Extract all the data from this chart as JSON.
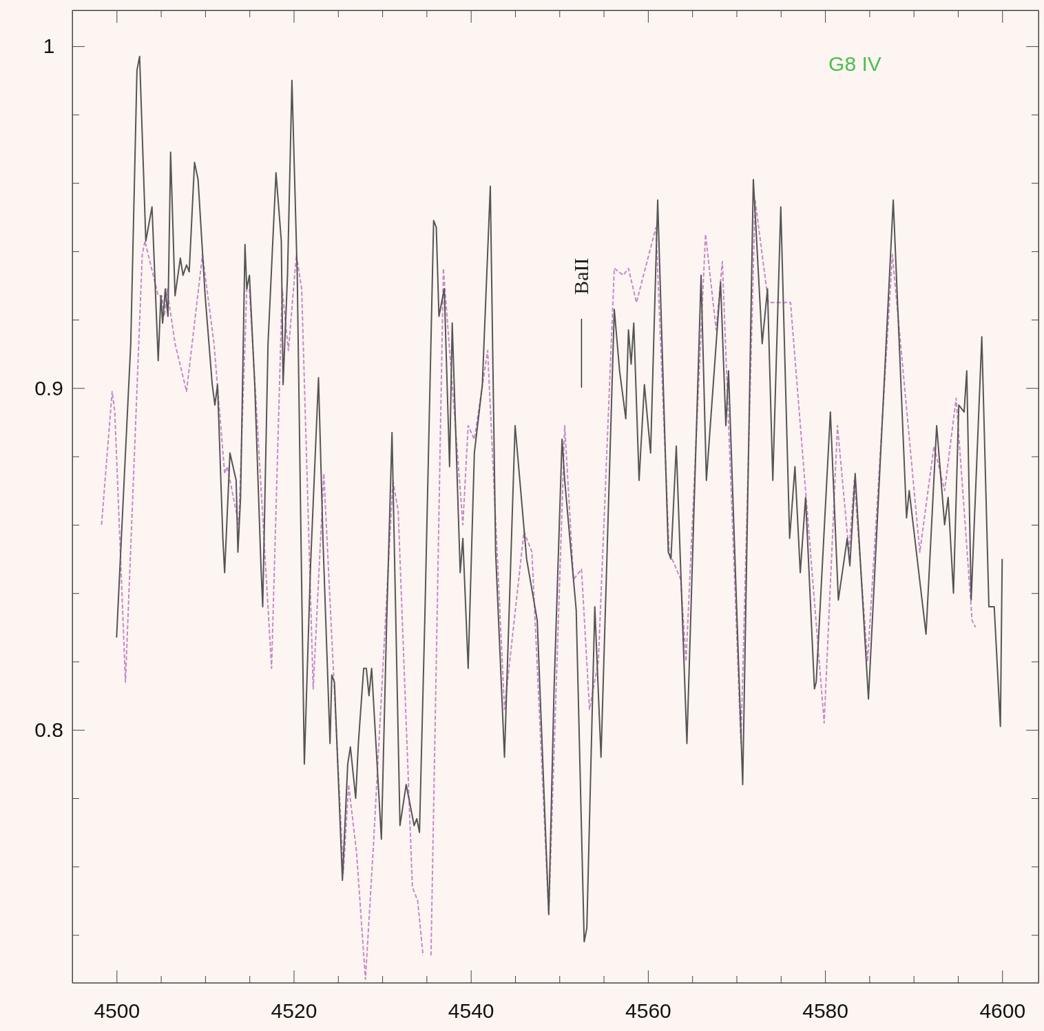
{
  "chart_data": {
    "type": "line",
    "xlim": [
      4495,
      4604.1
    ],
    "ylim": [
      0.726,
      1.0105
    ],
    "xticks": [
      {
        "value": 4495,
        "label": null
      },
      4500,
      {
        "value": 4505,
        "label": null
      },
      {
        "value": 4510,
        "label": null
      },
      {
        "value": 4515,
        "label": null
      },
      4520,
      {
        "value": 4525,
        "label": null
      },
      {
        "value": 4530,
        "label": null
      },
      {
        "value": 4535,
        "label": null
      },
      4540,
      {
        "value": 4545,
        "label": null
      },
      {
        "value": 4550,
        "label": null
      },
      {
        "value": 4555,
        "label": null
      },
      4560,
      {
        "value": 4565,
        "label": null
      },
      {
        "value": 4570,
        "label": null
      },
      {
        "value": 4575,
        "label": null
      },
      4580,
      {
        "value": 4585,
        "label": null
      },
      {
        "value": 4590,
        "label": null
      },
      {
        "value": 4595,
        "label": null
      },
      4600
    ],
    "yticks": [
      {
        "value": 0.74,
        "label": null
      },
      {
        "value": 0.76,
        "label": null
      },
      {
        "value": 0.78,
        "label": null
      },
      0.8,
      {
        "value": 0.82,
        "label": null
      },
      {
        "value": 0.84,
        "label": null
      },
      {
        "value": 0.86,
        "label": null
      },
      {
        "value": 0.88,
        "label": null
      },
      0.9,
      {
        "value": 0.92,
        "label": null
      },
      {
        "value": 0.94,
        "label": null
      },
      {
        "value": 0.96,
        "label": null
      },
      {
        "value": 0.98,
        "label": null
      },
      1
    ],
    "grid": false,
    "annotations": [
      "G8 IV"
    ],
    "ref_lines": [
      {
        "axis": "x",
        "value": 4552.5,
        "label": "BaII"
      }
    ],
    "series": [
      {
        "color": "#c58ac5",
        "line_style": "dashed",
        "x": [
          4498.3,
          4499.5,
          4499.8,
          4501.0,
          4502.9,
          4503.2,
          4504.7,
          4505.1,
          4505.4,
          4505.7,
          4506.6,
          4507.9,
          4509.7,
          4511.0,
          4512.2,
          4512.5,
          4513.8,
          4514.7,
          4515.0,
          4517.5,
          4518.7,
          4519.4,
          4520.3,
          4520.9,
          4522.2,
          4523.4,
          4525.6,
          4526.2,
          4527.1,
          4528.1,
          4529.0,
          4531.2,
          4531.8,
          4533.4,
          4534.0,
          4534.6,
          4535.0,
          4535.5,
          4536.9,
          4537.9,
          4539.1,
          4539.7,
          4540.4,
          4541.9,
          4543.8,
          4546.0,
          4546.9,
          4548.8,
          4550.6,
          4551.6,
          4552.5,
          4553.4,
          4554.4,
          4556.2,
          4557.2,
          4557.8,
          4558.7,
          4560.9,
          4562.4,
          4563.7,
          4564.3,
          4566.5,
          4567.7,
          4568.4,
          4570.5,
          4572.1,
          4573.6,
          4574.6,
          4575.5,
          4576.1,
          4579.9,
          4581.4,
          4582.7,
          4583.3,
          4584.8,
          4587.6,
          4590.7,
          4592.3,
          4593.5,
          4594.8,
          4596.6,
          4597.0
        ],
        "values": [
          0.86,
          0.899,
          0.893,
          0.814,
          0.939,
          0.943,
          0.927,
          0.927,
          0.921,
          0.929,
          0.913,
          0.899,
          0.939,
          0.913,
          0.875,
          0.877,
          0.86,
          0.929,
          0.929,
          0.818,
          0.929,
          0.911,
          0.939,
          0.929,
          0.812,
          0.875,
          0.758,
          0.784,
          0.764,
          0.727,
          0.766,
          0.873,
          0.864,
          0.754,
          0.75,
          0.734,
          null,
          0.734,
          0.935,
          0.901,
          0.86,
          0.889,
          0.885,
          0.911,
          0.806,
          0.858,
          0.852,
          0.746,
          0.889,
          0.844,
          0.847,
          0.806,
          0.82,
          0.935,
          0.933,
          0.935,
          0.925,
          0.947,
          0.852,
          0.844,
          0.82,
          0.945,
          0.917,
          0.937,
          0.796,
          0.955,
          0.925,
          0.925,
          0.925,
          0.925,
          0.802,
          0.889,
          0.852,
          0.873,
          0.82,
          0.939,
          0.852,
          0.883,
          0.87,
          0.897,
          0.832,
          0.83
        ]
      },
      {
        "color": "#555555",
        "line_style": "solid",
        "x": [
          4500.0,
          4500.2,
          4501.6,
          4502.3,
          4502.6,
          4503.3,
          4504.0,
          4504.7,
          4505.0,
          4505.2,
          4505.5,
          4505.8,
          4506.1,
          4506.6,
          4507.2,
          4507.5,
          4507.9,
          4508.2,
          4508.8,
          4509.2,
          4510.0,
          4510.8,
          4511.1,
          4511.4,
          4512.0,
          4512.2,
          4512.8,
          4513.5,
          4513.7,
          4514.0,
          4514.5,
          4514.7,
          4515.0,
          4515.6,
          4516.3,
          4516.5,
          4517.1,
          4518.0,
          4518.6,
          4518.8,
          4519.3,
          4519.8,
          4520.4,
          4520.9,
          4521.2,
          4521.9,
          4522.8,
          4523.3,
          4524.1,
          4524.3,
          4524.6,
          4525.5,
          4526.1,
          4526.4,
          4527.0,
          4527.3,
          4527.9,
          4528.2,
          4528.5,
          4528.8,
          4529.9,
          4530.5,
          4531.1,
          4532.0,
          4532.7,
          4533.6,
          4533.9,
          4534.2,
          4534.8,
          4535.8,
          4536.1,
          4536.4,
          4537.0,
          4537.6,
          4537.9,
          4538.8,
          4539.1,
          4539.7,
          4540.4,
          4541.3,
          4542.2,
          4542.8,
          4543.8,
          4545.0,
          4546.3,
          4547.5,
          4548.8,
          4549.4,
          4550.3,
          4550.6,
          4551.9,
          4552.8,
          4553.1,
          4554.0,
          4554.7,
          4556.2,
          4556.8,
          4557.5,
          4557.8,
          4558.1,
          4558.4,
          4559.0,
          4559.6,
          4560.3,
          4561.1,
          4562.3,
          4562.6,
          4563.2,
          4564.4,
          4566.0,
          4566.6,
          4568.2,
          4568.8,
          4569.1,
          4570.7,
          4571.9,
          4572.9,
          4573.5,
          4574.1,
          4575.0,
          4576.0,
          4576.6,
          4577.2,
          4577.8,
          4578.8,
          4579.0,
          4580.6,
          4581.5,
          4582.5,
          4582.8,
          4583.4,
          4584.9,
          4587.7,
          4589.2,
          4589.5,
          4591.4,
          4592.6,
          4593.5,
          4593.9,
          4594.5,
          4595.1,
          4595.7,
          4596.0,
          4596.5,
          4597.7,
          4598.5,
          4599.1,
          4599.8,
          4600.0
        ],
        "values": [
          0.827,
          0.838,
          0.913,
          0.993,
          0.997,
          0.943,
          0.953,
          0.908,
          0.927,
          0.919,
          0.929,
          0.921,
          0.969,
          0.927,
          0.938,
          0.933,
          0.936,
          0.934,
          0.966,
          0.961,
          0.927,
          0.901,
          0.895,
          0.901,
          0.856,
          0.846,
          0.881,
          0.873,
          0.852,
          0.868,
          0.942,
          0.929,
          0.933,
          0.901,
          0.848,
          0.836,
          0.913,
          0.963,
          0.943,
          0.901,
          0.933,
          0.99,
          0.933,
          0.842,
          0.79,
          0.848,
          0.903,
          0.856,
          0.796,
          0.816,
          0.814,
          0.756,
          0.79,
          0.795,
          0.78,
          0.796,
          0.818,
          0.818,
          0.81,
          0.818,
          0.768,
          0.832,
          0.887,
          0.772,
          0.784,
          0.772,
          0.774,
          0.77,
          0.832,
          0.949,
          0.947,
          0.921,
          0.929,
          0.877,
          0.919,
          0.846,
          0.856,
          0.818,
          0.881,
          0.901,
          0.959,
          0.852,
          0.792,
          0.889,
          0.85,
          0.832,
          0.746,
          0.812,
          0.885,
          0.873,
          0.835,
          0.738,
          0.742,
          0.836,
          0.792,
          0.923,
          0.905,
          0.891,
          0.917,
          0.907,
          0.919,
          0.873,
          0.901,
          0.881,
          0.955,
          0.852,
          0.85,
          0.883,
          0.796,
          0.933,
          0.873,
          0.931,
          0.889,
          0.905,
          0.784,
          0.961,
          0.913,
          0.929,
          0.873,
          0.953,
          0.856,
          0.877,
          0.846,
          0.868,
          0.812,
          0.814,
          0.893,
          0.838,
          0.856,
          0.848,
          0.875,
          0.809,
          0.955,
          0.862,
          0.87,
          0.828,
          0.889,
          0.86,
          0.868,
          0.84,
          0.895,
          0.893,
          0.905,
          0.838,
          0.915,
          0.836,
          0.836,
          0.801,
          0.85
        ]
      }
    ]
  }
}
